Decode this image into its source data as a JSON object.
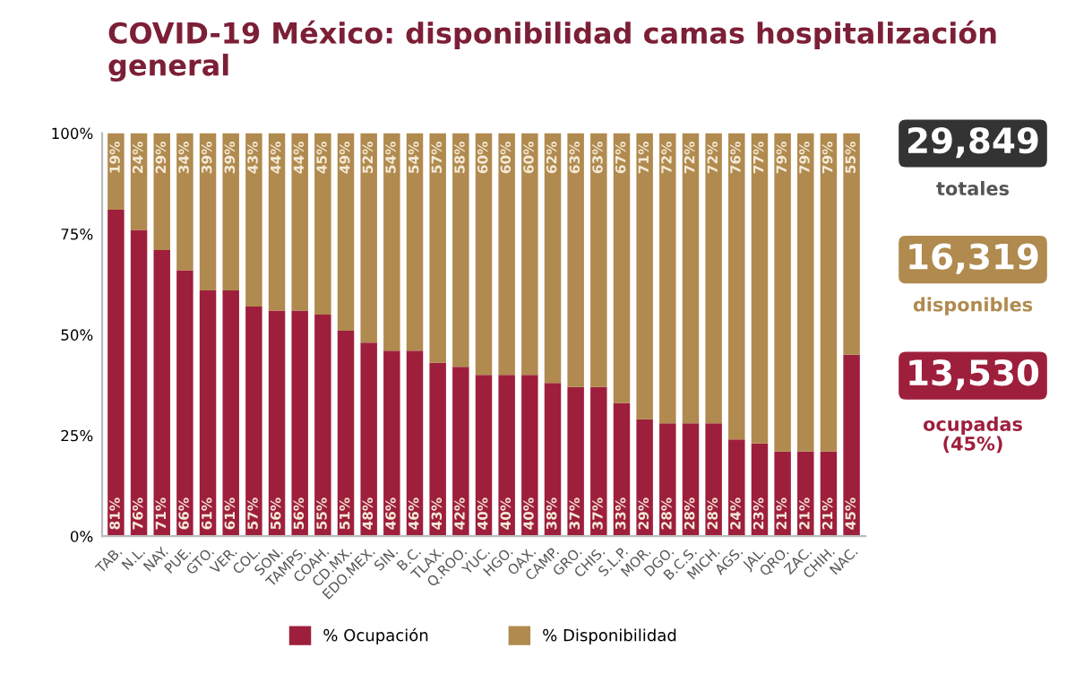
{
  "chart_data": {
    "type": "bar",
    "stacked": true,
    "title": "COVID-19 México: disponibilidad camas hospitalización general",
    "categories": [
      "TAB.",
      "N.L.",
      "NAY.",
      "PUE.",
      "GTO.",
      "VER.",
      "COL.",
      "SON.",
      "TAMPS.",
      "COAH.",
      "CD.MX.",
      "EDO.MEX.",
      "SIN.",
      "B.C.",
      "TLAX.",
      "Q.ROO.",
      "YUC.",
      "HGO.",
      "OAX.",
      "CAMP.",
      "GRO.",
      "CHIS.",
      "S.L.P.",
      "MOR.",
      "DGO.",
      "B.C.S.",
      "MICH.",
      "AGS.",
      "JAL.",
      "QRO.",
      "ZAC.",
      "CHIH.",
      "NAC."
    ],
    "series": [
      {
        "name": "% Ocupación",
        "color": "#9e1f3c",
        "values": [
          81,
          76,
          71,
          66,
          61,
          61,
          57,
          56,
          56,
          55,
          51,
          48,
          46,
          46,
          43,
          42,
          40,
          40,
          40,
          38,
          37,
          37,
          33,
          29,
          28,
          28,
          28,
          24,
          23,
          21,
          21,
          21,
          45
        ],
        "value_labels": [
          "81%",
          "76%",
          "71%",
          "66%",
          "61%",
          "61%",
          "57%",
          "56%",
          "56%",
          "55%",
          "51%",
          "48%",
          "46%",
          "46%",
          "43%",
          "42%",
          "40%",
          "40%",
          "40%",
          "38%",
          "37%",
          "37%",
          "33%",
          "29%",
          "28%",
          "28%",
          "28%",
          "24%",
          "23%",
          "21%",
          "21%",
          "21%",
          "45%"
        ]
      },
      {
        "name": "% Disponibilidad",
        "color": "#b08a4e",
        "values": [
          19,
          24,
          29,
          34,
          39,
          39,
          43,
          44,
          44,
          45,
          49,
          52,
          54,
          54,
          57,
          58,
          60,
          60,
          60,
          62,
          63,
          63,
          67,
          71,
          72,
          72,
          72,
          76,
          77,
          79,
          79,
          79,
          55
        ],
        "value_labels": [
          "19%",
          "24%",
          "29%",
          "34%",
          "39%",
          "39%",
          "43%",
          "44%",
          "44%",
          "45%",
          "49%",
          "52%",
          "54%",
          "54%",
          "57%",
          "58%",
          "60%",
          "60%",
          "60%",
          "62%",
          "63%",
          "63%",
          "67%",
          "71%",
          "72%",
          "72%",
          "72%",
          "76%",
          "77%",
          "79%",
          "79%",
          "79%",
          "55%"
        ]
      }
    ],
    "ylim": [
      0,
      100
    ],
    "yticks": [
      {
        "value": 0,
        "label": "0%"
      },
      {
        "value": 25,
        "label": "25%"
      },
      {
        "value": 50,
        "label": "50%"
      },
      {
        "value": 75,
        "label": "75%"
      },
      {
        "value": 100,
        "label": "100%"
      }
    ],
    "legend": "bottom",
    "annotations": [
      "29,849",
      "totales",
      "16,319",
      "disponibles",
      "13,530",
      "ocupadas\n(45%)"
    ]
  }
}
